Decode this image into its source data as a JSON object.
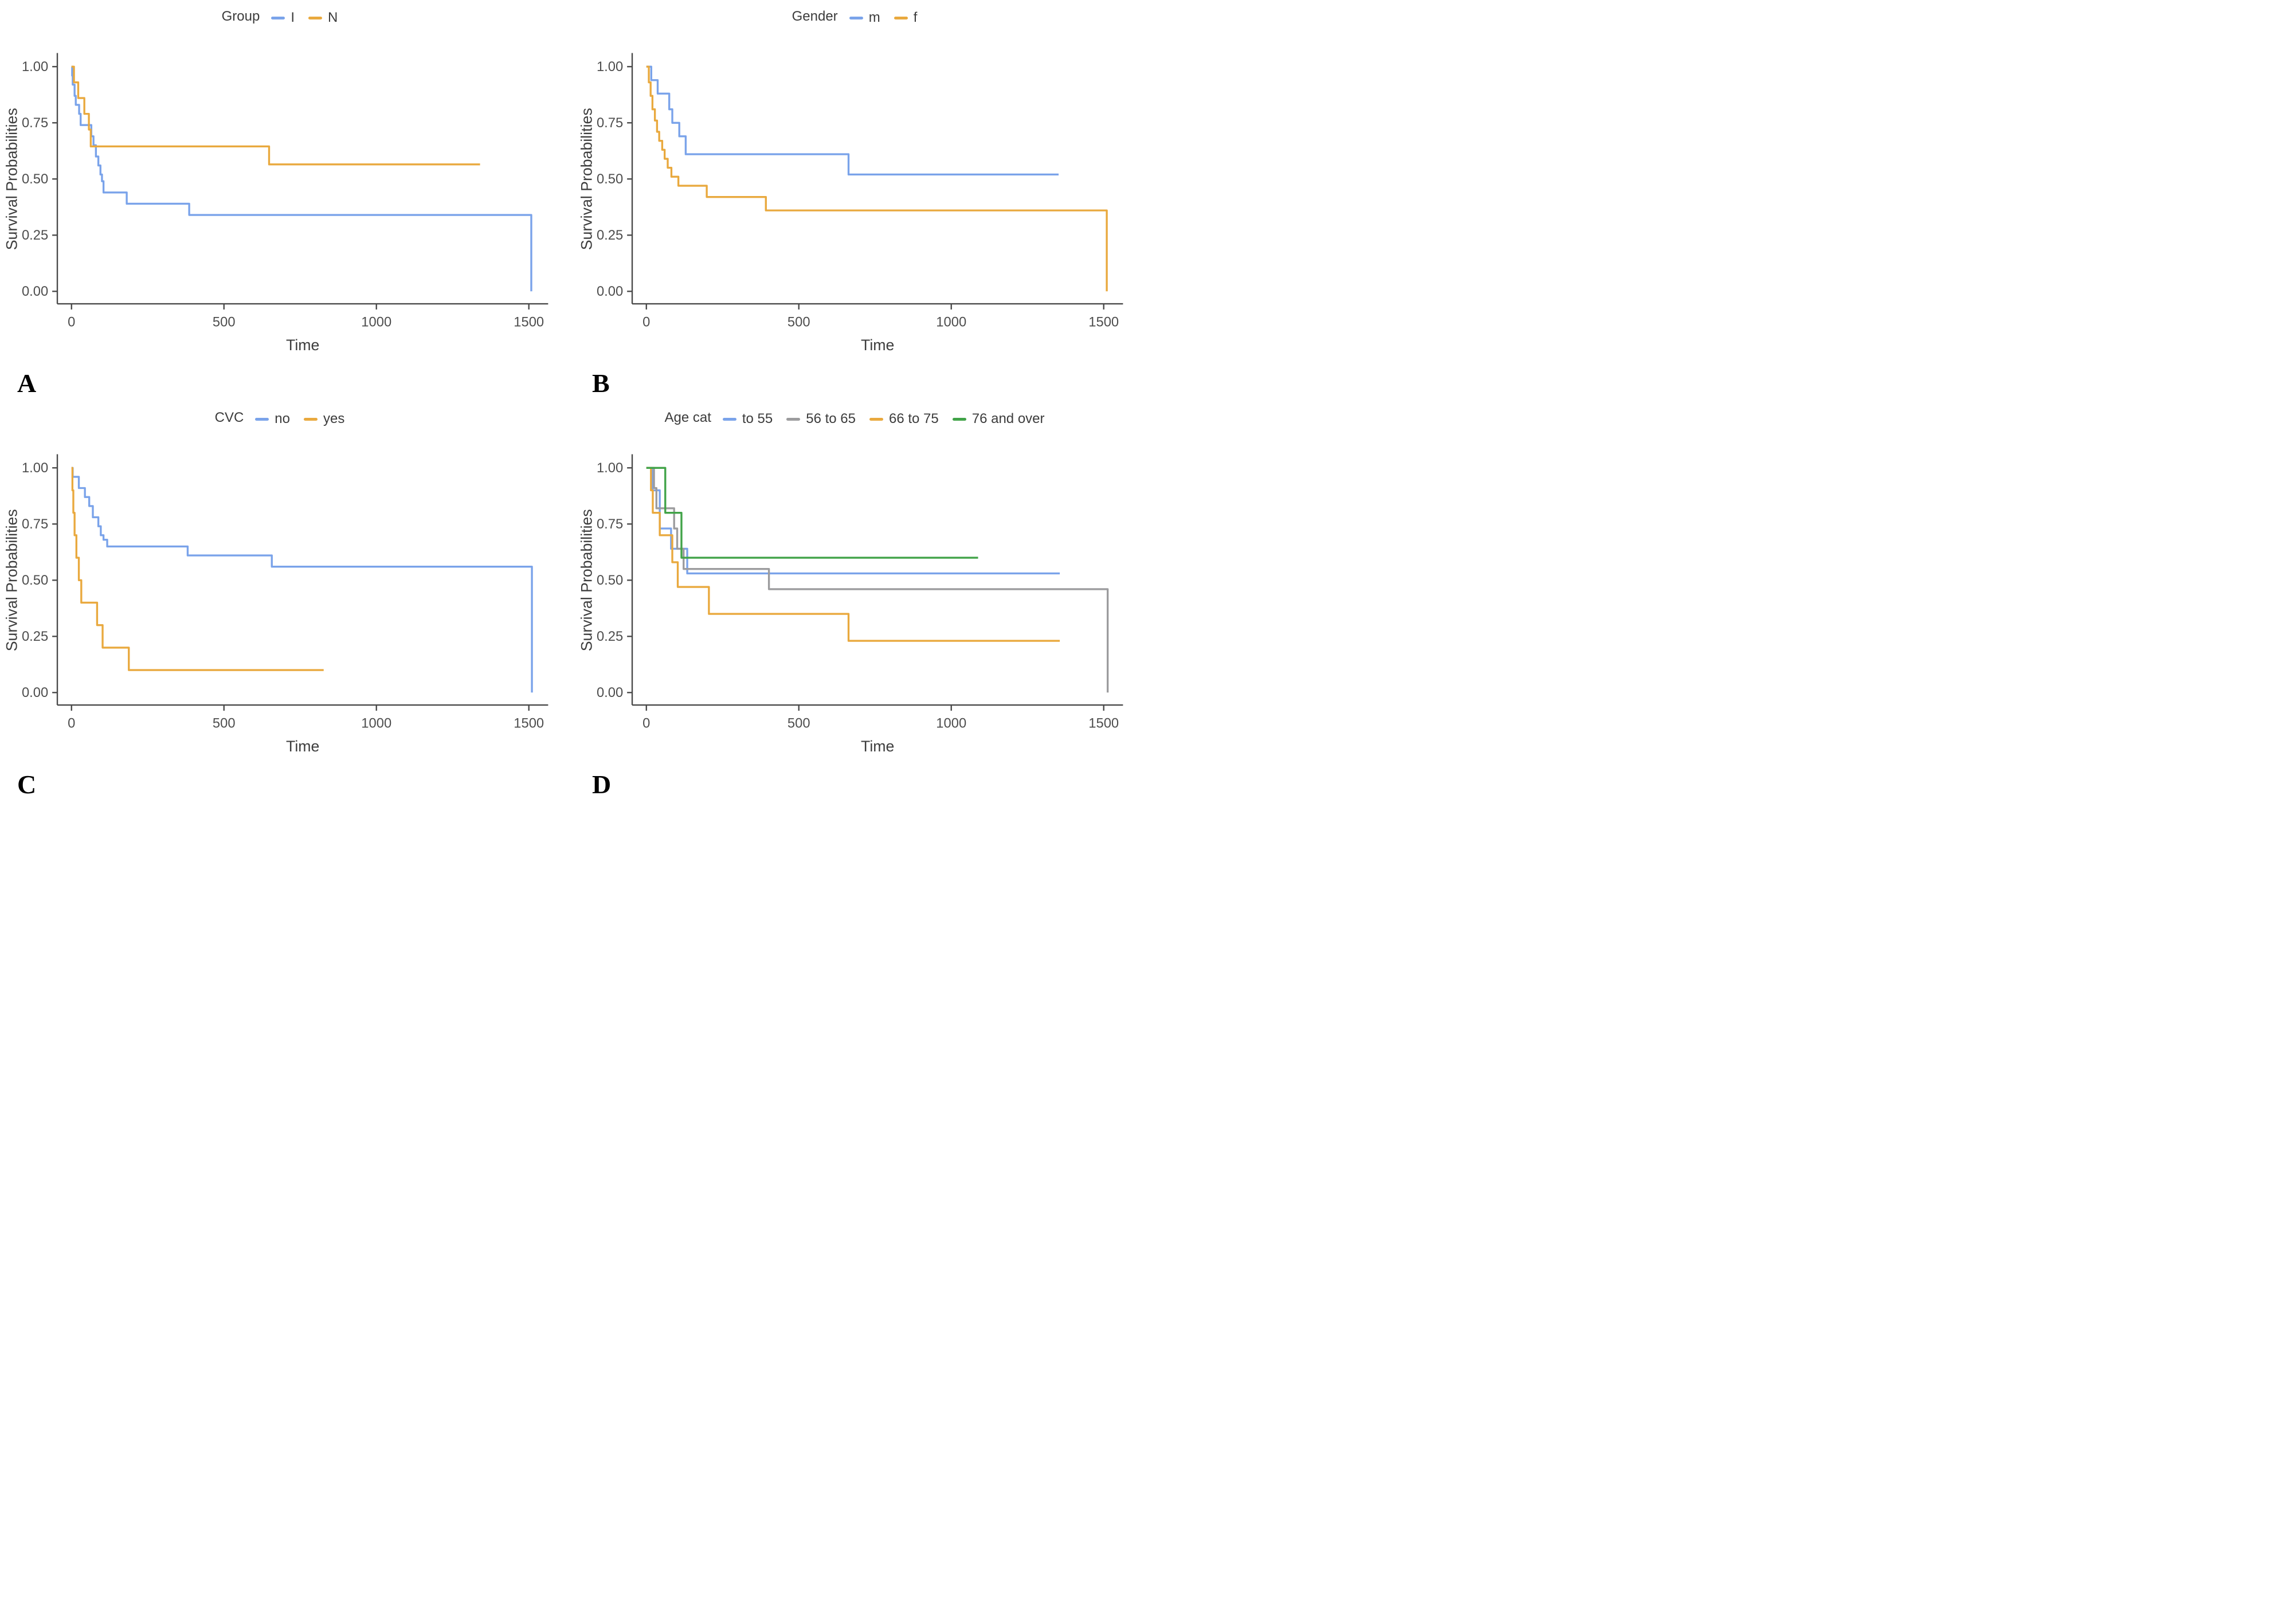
{
  "figure_type": "kaplan_meier_survival_panels",
  "chart_data": [
    {
      "type": "line",
      "subtype": "kaplan_meier_step",
      "panel_label": "A",
      "legend_title": "Group",
      "legend_position": "top",
      "xlabel": "Time",
      "ylabel": "Survival Probabilities",
      "xlim": [
        0,
        1500
      ],
      "ylim": [
        0,
        1.0
      ],
      "xticks": [
        0,
        500,
        1000,
        1500
      ],
      "ytick_labels": [
        "0.00",
        "0.25",
        "0.50",
        "0.75",
        "1.00"
      ],
      "grid": false,
      "series": [
        {
          "name": "I",
          "color": "#7AA3EA",
          "steps": [
            [
              0,
              1.0
            ],
            [
              2,
              0.96
            ],
            [
              4,
              0.92
            ],
            [
              10,
              0.87
            ],
            [
              14,
              0.83
            ],
            [
              25,
              0.79
            ],
            [
              30,
              0.74
            ],
            [
              65,
              0.69
            ],
            [
              72,
              0.65
            ],
            [
              80,
              0.6
            ],
            [
              88,
              0.56
            ],
            [
              95,
              0.52
            ],
            [
              100,
              0.49
            ],
            [
              105,
              0.44
            ],
            [
              181,
              0.39
            ],
            [
              386,
              0.34
            ],
            [
              1508,
              0.0
            ]
          ],
          "end": 1508
        },
        {
          "name": "N",
          "color": "#E9A93E",
          "steps": [
            [
              0,
              1.0
            ],
            [
              8,
              0.93
            ],
            [
              22,
              0.86
            ],
            [
              42,
              0.79
            ],
            [
              57,
              0.72
            ],
            [
              63,
              0.645
            ],
            [
              648,
              0.565
            ]
          ],
          "end": 1340
        }
      ]
    },
    {
      "type": "line",
      "subtype": "kaplan_meier_step",
      "panel_label": "B",
      "legend_title": "Gender",
      "legend_position": "top",
      "xlabel": "Time",
      "ylabel": "Survival Probabilities",
      "xlim": [
        0,
        1500
      ],
      "ylim": [
        0,
        1.0
      ],
      "xticks": [
        0,
        500,
        1000,
        1500
      ],
      "ytick_labels": [
        "0.00",
        "0.25",
        "0.50",
        "0.75",
        "1.00"
      ],
      "grid": false,
      "series": [
        {
          "name": "m",
          "color": "#7AA3EA",
          "steps": [
            [
              0,
              1.0
            ],
            [
              16,
              0.94
            ],
            [
              37,
              0.88
            ],
            [
              75,
              0.81
            ],
            [
              85,
              0.75
            ],
            [
              108,
              0.69
            ],
            [
              129,
              0.61
            ],
            [
              663,
              0.52
            ]
          ],
          "end": 1352
        },
        {
          "name": "f",
          "color": "#E9A93E",
          "steps": [
            [
              0,
              1.0
            ],
            [
              8,
              0.93
            ],
            [
              14,
              0.87
            ],
            [
              20,
              0.81
            ],
            [
              28,
              0.76
            ],
            [
              35,
              0.71
            ],
            [
              42,
              0.67
            ],
            [
              52,
              0.63
            ],
            [
              60,
              0.59
            ],
            [
              70,
              0.55
            ],
            [
              82,
              0.51
            ],
            [
              105,
              0.47
            ],
            [
              198,
              0.42
            ],
            [
              392,
              0.36
            ],
            [
              1510,
              0.0
            ]
          ],
          "end": 1510
        }
      ]
    },
    {
      "type": "line",
      "subtype": "kaplan_meier_step",
      "panel_label": "C",
      "legend_title": "CVC",
      "legend_position": "top",
      "xlabel": "Time",
      "ylabel": "Survival Probabilities",
      "xlim": [
        0,
        1500
      ],
      "ylim": [
        0,
        1.0
      ],
      "xticks": [
        0,
        500,
        1000,
        1500
      ],
      "ytick_labels": [
        "0.00",
        "0.25",
        "0.50",
        "0.75",
        "1.00"
      ],
      "grid": false,
      "series": [
        {
          "name": "no",
          "color": "#7AA3EA",
          "steps": [
            [
              0,
              1.0
            ],
            [
              4,
              0.96
            ],
            [
              24,
              0.91
            ],
            [
              44,
              0.87
            ],
            [
              58,
              0.83
            ],
            [
              70,
              0.78
            ],
            [
              88,
              0.74
            ],
            [
              96,
              0.7
            ],
            [
              105,
              0.68
            ],
            [
              117,
              0.65
            ],
            [
              381,
              0.61
            ],
            [
              657,
              0.56
            ],
            [
              1510,
              0.0
            ]
          ],
          "end": 1510
        },
        {
          "name": "yes",
          "color": "#E9A93E",
          "steps": [
            [
              0,
              1.0
            ],
            [
              3,
              0.9
            ],
            [
              6,
              0.8
            ],
            [
              10,
              0.7
            ],
            [
              16,
              0.6
            ],
            [
              24,
              0.5
            ],
            [
              32,
              0.4
            ],
            [
              84,
              0.3
            ],
            [
              102,
              0.2
            ],
            [
              188,
              0.1
            ]
          ],
          "end": 827
        }
      ]
    },
    {
      "type": "line",
      "subtype": "kaplan_meier_step",
      "panel_label": "D",
      "legend_title": "Age cat",
      "legend_position": "top",
      "xlabel": "Time",
      "ylabel": "Survival Probabilities",
      "xlim": [
        0,
        1500
      ],
      "ylim": [
        0,
        1.0
      ],
      "xticks": [
        0,
        500,
        1000,
        1500
      ],
      "ytick_labels": [
        "0.00",
        "0.25",
        "0.50",
        "0.75",
        "1.00"
      ],
      "grid": false,
      "series": [
        {
          "name": "to 55",
          "color": "#7AA3EA",
          "steps": [
            [
              0,
              1.0
            ],
            [
              20,
              0.9
            ],
            [
              44,
              0.73
            ],
            [
              81,
              0.64
            ],
            [
              134,
              0.53
            ]
          ],
          "end": 1356
        },
        {
          "name": "56 to 65",
          "color": "#9C9C9E",
          "steps": [
            [
              0,
              1.0
            ],
            [
              25,
              0.91
            ],
            [
              33,
              0.82
            ],
            [
              91,
              0.73
            ],
            [
              101,
              0.64
            ],
            [
              122,
              0.55
            ],
            [
              402,
              0.46
            ],
            [
              1513,
              0.0
            ]
          ],
          "end": 1513
        },
        {
          "name": "66 to 75",
          "color": "#E9A93E",
          "steps": [
            [
              0,
              1.0
            ],
            [
              15,
              0.9
            ],
            [
              21,
              0.8
            ],
            [
              44,
              0.7
            ],
            [
              85,
              0.58
            ],
            [
              103,
              0.47
            ],
            [
              205,
              0.35
            ],
            [
              663,
              0.23
            ]
          ],
          "end": 1356
        },
        {
          "name": "76 and over",
          "color": "#41A348",
          "steps": [
            [
              0,
              1.0
            ],
            [
              62,
              0.8
            ],
            [
              115,
              0.6
            ]
          ],
          "end": 1088
        }
      ]
    }
  ]
}
